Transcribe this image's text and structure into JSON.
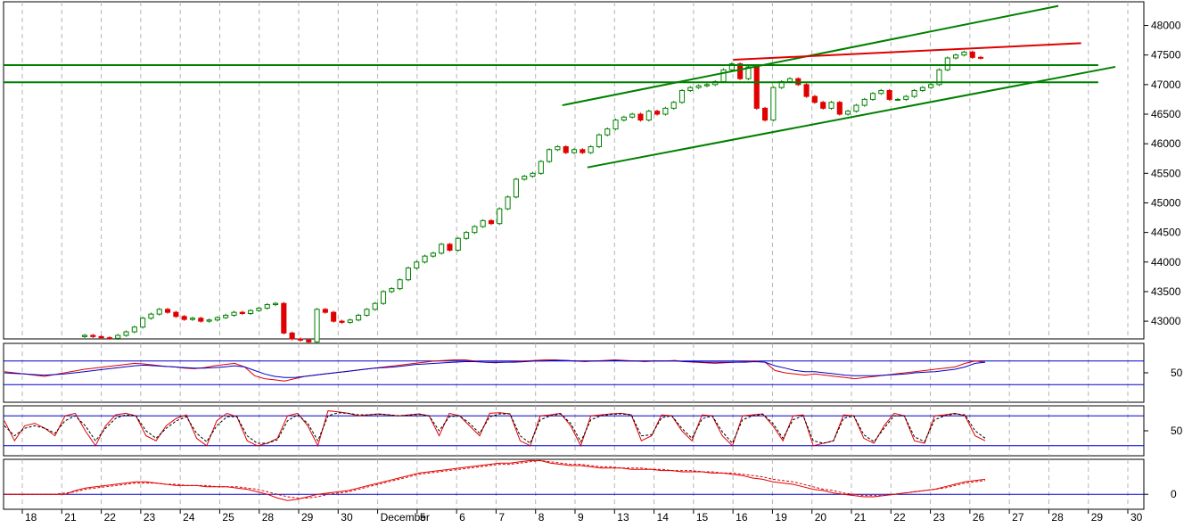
{
  "colors": {
    "background": "#ffffff",
    "grid": "#b4b4b4",
    "up_candle": "#008000",
    "down_candle": "#e00000",
    "channel_line": "#008000",
    "horizontal_line": "#008000",
    "resistance_line": "#e00000",
    "indicator_main": "#e00000",
    "indicator_signal": "#0000cc",
    "indicator_level": "#0000cc",
    "axis": "#000000"
  },
  "chart_data": [
    {
      "type": "candlestick",
      "panel": "price",
      "xlabel": "",
      "ylabel": "",
      "ylim": [
        42700,
        48400
      ],
      "grid": true,
      "x_ticks": [
        "18",
        "21",
        "22",
        "23",
        "24",
        "25",
        "28",
        "29",
        "30",
        "December",
        "5",
        "6",
        "7",
        "8",
        "9",
        "13",
        "14",
        "15",
        "16",
        "19",
        "20",
        "21",
        "22",
        "23",
        "26",
        "27",
        "28",
        "29",
        "30"
      ],
      "y_ticks": [
        43000,
        43500,
        44000,
        44500,
        45000,
        45500,
        46000,
        46500,
        47000,
        47500,
        48000
      ],
      "close_series": [
        42760,
        42740,
        42720,
        42710,
        42760,
        42820,
        42900,
        43050,
        43120,
        43200,
        43150,
        43080,
        43030,
        43050,
        43000,
        43020,
        43060,
        43100,
        43150,
        43130,
        43180,
        43220,
        43280,
        43300,
        42800,
        42700,
        42680,
        42650,
        43200,
        43150,
        43000,
        42980,
        43020,
        43100,
        43200,
        43300,
        43500,
        43550,
        43700,
        43900,
        44000,
        44100,
        44150,
        44300,
        44200,
        44400,
        44500,
        44600,
        44700,
        44650,
        44900,
        45100,
        45400,
        45450,
        45500,
        45700,
        45900,
        45950,
        45850,
        45900,
        45850,
        45950,
        46150,
        46250,
        46400,
        46450,
        46500,
        46400,
        46550,
        46500,
        46600,
        46700,
        46900,
        46950,
        46980,
        47000,
        47050,
        47250,
        47350,
        47100,
        47300,
        46600,
        46400,
        46950,
        47050,
        47100,
        47000,
        46800,
        46700,
        46600,
        46700,
        46500,
        46550,
        46650,
        46750,
        46850,
        46900,
        46750,
        46750,
        46800,
        46900,
        46950,
        47000,
        47250,
        47450,
        47500,
        47550,
        47460,
        47450
      ],
      "trendlines": [
        {
          "name": "channel-upper",
          "color": "#008000",
          "points": [
            [
              0.49,
              46650
            ],
            [
              0.925,
              48330
            ]
          ]
        },
        {
          "name": "channel-lower",
          "color": "#008000",
          "points": [
            [
              0.512,
              45600
            ],
            [
              0.975,
              47300
            ]
          ]
        },
        {
          "name": "resistance",
          "color": "#e00000",
          "points": [
            [
              0.64,
              47420
            ],
            [
              0.945,
              47700
            ]
          ]
        },
        {
          "name": "hline-1",
          "color": "#008000",
          "points": [
            [
              0.0,
              47330
            ],
            [
              0.96,
              47330
            ]
          ]
        },
        {
          "name": "hline-2",
          "color": "#008000",
          "points": [
            [
              0.0,
              47040
            ],
            [
              0.96,
              47040
            ]
          ]
        }
      ]
    },
    {
      "type": "line",
      "panel": "oscillator-1",
      "ylim": [
        0,
        100
      ],
      "y_ticks": [
        50
      ],
      "levels": [
        70,
        30
      ],
      "series": [
        {
          "color": "#e00000",
          "values": [
            52,
            50,
            48,
            46,
            44,
            47,
            50,
            53,
            56,
            58,
            60,
            62,
            64,
            66,
            65,
            63,
            61,
            60,
            58,
            57,
            59,
            62,
            64,
            66,
            60,
            45,
            40,
            38,
            36,
            40,
            44,
            46,
            48,
            50,
            52,
            54,
            56,
            58,
            60,
            62,
            64,
            66,
            68,
            70,
            71,
            72,
            72,
            70,
            68,
            67,
            68,
            69,
            70,
            71,
            72,
            72,
            71,
            70,
            69,
            70,
            71,
            72,
            71,
            70,
            69,
            70,
            70,
            71,
            69,
            68,
            67,
            66,
            67,
            68,
            69,
            70,
            68,
            54,
            50,
            48,
            46,
            48,
            46,
            44,
            42,
            40,
            42,
            44,
            46,
            48,
            50,
            52,
            54,
            56,
            58,
            60,
            66,
            70,
            68
          ]
        },
        {
          "color": "#0000cc",
          "values": [
            50,
            49,
            48,
            47,
            46,
            47,
            48,
            50,
            52,
            54,
            56,
            58,
            60,
            62,
            63,
            62,
            61,
            60,
            59,
            58,
            58,
            59,
            60,
            62,
            60,
            54,
            48,
            44,
            42,
            42,
            44,
            46,
            48,
            50,
            52,
            54,
            56,
            58,
            59,
            60,
            62,
            64,
            65,
            66,
            67,
            68,
            69,
            69,
            68,
            68,
            68,
            68,
            69,
            70,
            70,
            71,
            71,
            70,
            70,
            70,
            70,
            71,
            70,
            70,
            70,
            70,
            70,
            70,
            69,
            69,
            68,
            68,
            68,
            68,
            68,
            69,
            68,
            62,
            58,
            54,
            52,
            52,
            50,
            48,
            46,
            45,
            45,
            45,
            46,
            47,
            48,
            50,
            51,
            52,
            54,
            56,
            60,
            66,
            68
          ]
        }
      ]
    },
    {
      "type": "line",
      "panel": "oscillator-2",
      "ylim": [
        0,
        100
      ],
      "y_ticks": [
        50
      ],
      "levels": [
        80,
        20
      ],
      "series": [
        {
          "color": "#e00000",
          "values": [
            70,
            30,
            60,
            65,
            55,
            40,
            80,
            85,
            50,
            20,
            60,
            82,
            85,
            80,
            40,
            30,
            60,
            75,
            82,
            35,
            20,
            70,
            85,
            78,
            30,
            20,
            25,
            35,
            80,
            85,
            60,
            20,
            90,
            88,
            85,
            80,
            82,
            84,
            82,
            80,
            82,
            84,
            80,
            40,
            85,
            80,
            60,
            40,
            85,
            86,
            84,
            30,
            20,
            80,
            82,
            85,
            60,
            20,
            80,
            82,
            84,
            85,
            82,
            30,
            40,
            82,
            80,
            50,
            30,
            82,
            80,
            40,
            20,
            80,
            82,
            84,
            60,
            30,
            80,
            82,
            20,
            25,
            30,
            82,
            80,
            35,
            25,
            60,
            85,
            80,
            30,
            25,
            80,
            82,
            85,
            80,
            40,
            30
          ]
        },
        {
          "color": "#000000",
          "values": [
            60,
            40,
            55,
            60,
            55,
            45,
            70,
            80,
            60,
            30,
            55,
            75,
            82,
            80,
            50,
            35,
            55,
            70,
            78,
            45,
            28,
            60,
            78,
            78,
            40,
            25,
            25,
            32,
            70,
            82,
            65,
            30,
            80,
            86,
            85,
            82,
            82,
            83,
            82,
            80,
            81,
            83,
            80,
            50,
            78,
            80,
            65,
            45,
            78,
            84,
            84,
            40,
            25,
            72,
            80,
            84,
            65,
            28,
            72,
            80,
            83,
            84,
            82,
            40,
            42,
            76,
            80,
            55,
            35,
            74,
            80,
            48,
            25,
            72,
            80,
            83,
            65,
            35,
            72,
            80,
            30,
            25,
            30,
            75,
            80,
            42,
            28,
            55,
            80,
            80,
            38,
            28,
            72,
            80,
            84,
            82,
            50,
            35
          ]
        }
      ]
    },
    {
      "type": "line",
      "panel": "oscillator-3",
      "ylim": [
        -12,
        28
      ],
      "y_ticks": [
        0
      ],
      "levels": [
        0
      ],
      "series": [
        {
          "color": "#e00000",
          "values": [
            0,
            0,
            0,
            0,
            0,
            0,
            0,
            3,
            5,
            6,
            7,
            8,
            9,
            10,
            10,
            9,
            8,
            7,
            7,
            7,
            6,
            6,
            6,
            5,
            4,
            2,
            0,
            -3,
            -5,
            -4,
            -2,
            0,
            1,
            2,
            3,
            5,
            7,
            9,
            11,
            13,
            15,
            17,
            18,
            19,
            20,
            21,
            22,
            23,
            24,
            25,
            25,
            26,
            27,
            27,
            25,
            24,
            23,
            23,
            22,
            21,
            21,
            21,
            20,
            20,
            20,
            19,
            19,
            18,
            18,
            18,
            17,
            17,
            16,
            15,
            13,
            12,
            10,
            9,
            8,
            6,
            4,
            3,
            1,
            0,
            -1,
            -2,
            -2,
            -1,
            0,
            1,
            2,
            3,
            4,
            6,
            8,
            10,
            11,
            12
          ]
        },
        {
          "color": "#e00000",
          "values": [
            0,
            0,
            0,
            0,
            0,
            0,
            1,
            2,
            4,
            5,
            6,
            7,
            8,
            9,
            9,
            9,
            8,
            8,
            7,
            7,
            7,
            6,
            6,
            6,
            5,
            4,
            2,
            0,
            -2,
            -3,
            -3,
            -2,
            0,
            1,
            2,
            4,
            6,
            8,
            10,
            12,
            14,
            16,
            17,
            18,
            19,
            20,
            21,
            22,
            23,
            24,
            24,
            25,
            26,
            27,
            26,
            25,
            24,
            24,
            23,
            22,
            22,
            21,
            21,
            21,
            20,
            20,
            19,
            19,
            19,
            18,
            18,
            17,
            17,
            16,
            15,
            14,
            12,
            11,
            10,
            8,
            6,
            4,
            3,
            1,
            0,
            -1,
            -1,
            -1,
            0,
            1,
            2,
            3,
            4,
            5,
            7,
            9,
            10,
            11
          ]
        }
      ]
    }
  ]
}
